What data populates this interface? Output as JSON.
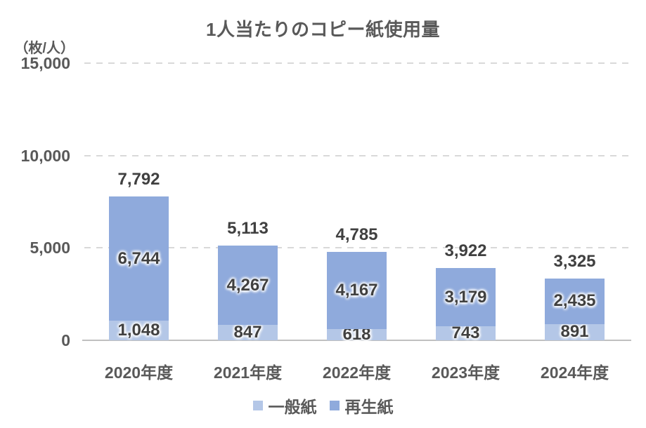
{
  "chart_data": {
    "type": "bar",
    "stacked": true,
    "title": "1人当たりのコピー紙使用量",
    "unit_label": "（枚/人）",
    "categories": [
      "2020年度",
      "2021年度",
      "2022年度",
      "2023年度",
      "2024年度"
    ],
    "series": [
      {
        "name": "一般紙",
        "slug": "general-paper",
        "color": "#b4c7e7",
        "values": [
          1048,
          847,
          618,
          743,
          891
        ]
      },
      {
        "name": "再生紙",
        "slug": "recycled-paper",
        "color": "#8faadc",
        "values": [
          6744,
          4267,
          4167,
          3179,
          2435
        ]
      }
    ],
    "totals": [
      7792,
      5113,
      4785,
      3922,
      3325
    ],
    "total_labels": [
      "7,792",
      "5,113",
      "4,785",
      "3,922",
      "3,325"
    ],
    "ylim": [
      0,
      15000
    ],
    "yticks": [
      0,
      5000,
      10000,
      15000
    ],
    "ytick_labels": [
      "0",
      "5,000",
      "10,000",
      "15,000"
    ],
    "grid": "horizontal-dashed",
    "legend_position": "bottom",
    "colors": {
      "grid": "#d9d9d9",
      "axis_line": "#bfbfbf",
      "axis_text": "#595959",
      "value_text": "#404040"
    }
  }
}
